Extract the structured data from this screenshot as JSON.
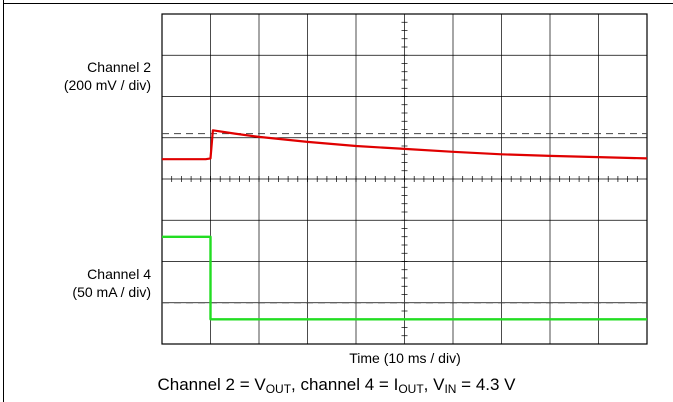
{
  "chart_data": {
    "type": "line",
    "x_divisions": 10,
    "y_divisions": 8,
    "grid": true,
    "channel_2": {
      "label_line1": "Channel 2",
      "label_line2": "(200 mV / div)",
      "color": "#e00000",
      "ground_div": 4.5,
      "reference_div": 5.1,
      "x": [
        0,
        0.45,
        0.9,
        1.0,
        1.05,
        1.5,
        2.0,
        3.0,
        4.0,
        5.0,
        6.0,
        7.0,
        8.0,
        9.0,
        10.0
      ],
      "y": [
        -0.02,
        -0.02,
        -0.02,
        0.0,
        0.68,
        0.6,
        0.52,
        0.4,
        0.3,
        0.23,
        0.16,
        0.1,
        0.06,
        0.03,
        0.0
      ]
    },
    "channel_4": {
      "label_line1": "Channel 4",
      "label_line2": "(50 mA / div)",
      "color": "#22dd22",
      "ground_div": 0.6,
      "reference_div": 1.0,
      "x": [
        0,
        1.0,
        1.0,
        10.0
      ],
      "y": [
        2.0,
        2.0,
        0.0,
        0.0
      ]
    }
  },
  "x_label": "Time (10 ms / div)",
  "caption": {
    "prefix": "Channel 2 = V",
    "sub_out1": "OUT",
    "mid1": ", channel 4 = I",
    "sub_out2": "OUT",
    "mid2": ", V",
    "sub_in": "IN",
    "suffix": " = 4.3 V"
  }
}
